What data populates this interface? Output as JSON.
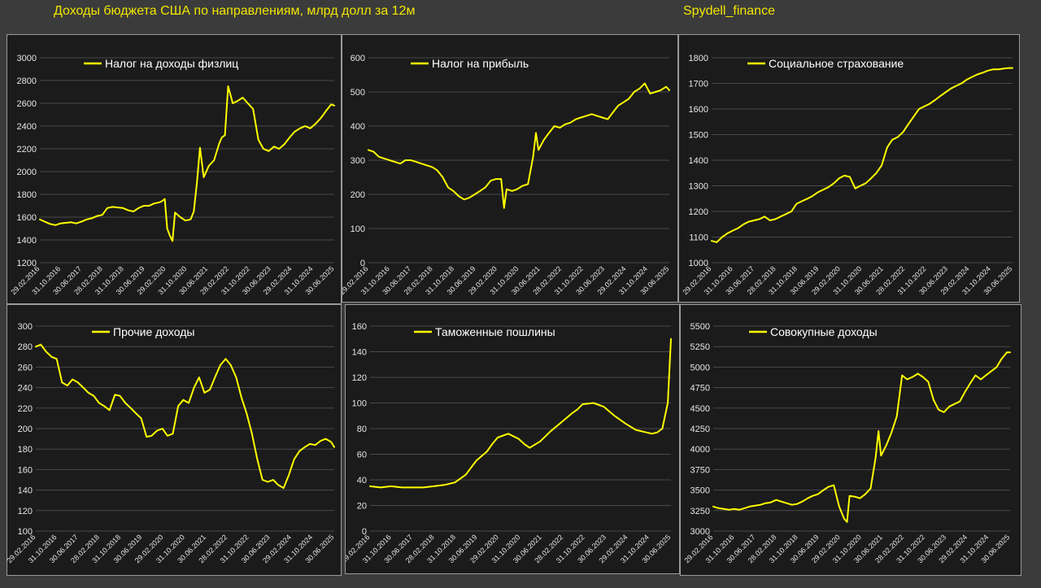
{
  "header": {
    "title": "Доходы бюджета США по направлениям, млрд долл за 12м",
    "brand": "Spydell_finance"
  },
  "colors": {
    "background": "#3b3b3b",
    "panel": "#1b1b1b",
    "line": "#ffff00",
    "title_text": "#f2e600"
  },
  "chart_data": [
    {
      "type": "line",
      "title": "",
      "legend": "Налог на доходы физлиц",
      "series": [
        {
          "name": "Налог на доходы физлиц",
          "x": [
            2016.17,
            2016.33,
            2016.5,
            2016.67,
            2016.83,
            2017.0,
            2017.17,
            2017.33,
            2017.5,
            2017.67,
            2017.83,
            2018.0,
            2018.17,
            2018.33,
            2018.5,
            2018.67,
            2018.83,
            2019.0,
            2019.17,
            2019.33,
            2019.5,
            2019.67,
            2019.83,
            2020.0,
            2020.08,
            2020.17,
            2020.25,
            2020.33,
            2020.42,
            2020.5,
            2020.67,
            2020.83,
            2021.0,
            2021.1,
            2021.2,
            2021.3,
            2021.42,
            2021.58,
            2021.75,
            2021.92,
            2022.0,
            2022.1,
            2022.2,
            2022.35,
            2022.5,
            2022.67,
            2022.83,
            2023.0,
            2023.17,
            2023.33,
            2023.5,
            2023.67,
            2023.83,
            2024.0,
            2024.17,
            2024.33,
            2024.5,
            2024.67,
            2024.83,
            2025.0,
            2025.17,
            2025.33,
            2025.5,
            2025.6
          ],
          "values": [
            1580,
            1560,
            1540,
            1530,
            1545,
            1550,
            1555,
            1545,
            1560,
            1580,
            1590,
            1610,
            1620,
            1680,
            1690,
            1685,
            1680,
            1660,
            1650,
            1680,
            1700,
            1700,
            1720,
            1730,
            1740,
            1760,
            1500,
            1440,
            1390,
            1640,
            1600,
            1570,
            1580,
            1650,
            1900,
            2210,
            1950,
            2050,
            2100,
            2250,
            2300,
            2320,
            2750,
            2600,
            2620,
            2650,
            2600,
            2550,
            2280,
            2200,
            2180,
            2220,
            2200,
            2240,
            2300,
            2350,
            2380,
            2400,
            2380,
            2420,
            2470,
            2530,
            2590,
            2580
          ]
        }
      ],
      "ylim": [
        1200,
        3000
      ],
      "yticks": [
        "3000",
        "2800",
        "2600",
        "2400",
        "2200",
        "2000",
        "1800",
        "1600",
        "1400",
        "1200"
      ],
      "xticks": [
        "29.02.2016",
        "31.10.2016",
        "30.06.2017",
        "28.02.2018",
        "31.10.2018",
        "30.06.2019",
        "29.02.2020",
        "31.10.2020",
        "30.06.2021",
        "28.02.2022",
        "31.10.2022",
        "30.06.2023",
        "29.02.2024",
        "31.10.2024",
        "30.06.2025"
      ]
    },
    {
      "type": "line",
      "title": "",
      "legend": "Налог на прибыль",
      "series": [
        {
          "name": "Налог на прибыль",
          "x": [
            2016.17,
            2016.33,
            2016.5,
            2016.67,
            2016.83,
            2017.0,
            2017.17,
            2017.33,
            2017.5,
            2017.67,
            2017.83,
            2018.0,
            2018.17,
            2018.33,
            2018.5,
            2018.67,
            2018.83,
            2019.0,
            2019.17,
            2019.33,
            2019.5,
            2019.67,
            2019.83,
            2020.0,
            2020.17,
            2020.33,
            2020.42,
            2020.5,
            2020.67,
            2020.83,
            2021.0,
            2021.17,
            2021.33,
            2021.42,
            2021.5,
            2021.67,
            2021.83,
            2022.0,
            2022.17,
            2022.33,
            2022.5,
            2022.67,
            2022.83,
            2023.0,
            2023.17,
            2023.33,
            2023.5,
            2023.67,
            2023.83,
            2024.0,
            2024.17,
            2024.33,
            2024.5,
            2024.67,
            2024.83,
            2025.0,
            2025.17,
            2025.33,
            2025.5,
            2025.6
          ],
          "values": [
            330,
            325,
            310,
            305,
            300,
            295,
            290,
            300,
            300,
            295,
            290,
            285,
            280,
            270,
            250,
            220,
            210,
            195,
            185,
            190,
            200,
            210,
            220,
            240,
            245,
            245,
            160,
            215,
            210,
            215,
            225,
            230,
            310,
            380,
            330,
            360,
            380,
            400,
            395,
            405,
            410,
            420,
            425,
            430,
            435,
            430,
            425,
            420,
            440,
            460,
            470,
            480,
            500,
            510,
            525,
            495,
            500,
            505,
            515,
            505
          ]
        }
      ],
      "ylim": [
        0,
        600
      ],
      "yticks": [
        "600",
        "500",
        "400",
        "300",
        "200",
        "100",
        "0"
      ],
      "xticks": [
        "29.02.2016",
        "31.10.2016",
        "30.06.2017",
        "28.02.2018",
        "31.10.2018",
        "30.06.2019",
        "29.02.2020",
        "31.10.2020",
        "30.06.2021",
        "28.02.2022",
        "31.10.2022",
        "30.06.2023",
        "29.02.2024",
        "31.10.2024",
        "30.06.2025"
      ]
    },
    {
      "type": "line",
      "title": "",
      "legend": "Социальное страхование",
      "series": [
        {
          "name": "Социальное страхование",
          "x": [
            2016.17,
            2016.33,
            2016.5,
            2016.67,
            2016.83,
            2017.0,
            2017.17,
            2017.33,
            2017.5,
            2017.67,
            2017.83,
            2018.0,
            2018.17,
            2018.33,
            2018.5,
            2018.67,
            2018.83,
            2019.0,
            2019.17,
            2019.33,
            2019.5,
            2019.67,
            2019.83,
            2020.0,
            2020.17,
            2020.33,
            2020.5,
            2020.67,
            2020.83,
            2021.0,
            2021.17,
            2021.33,
            2021.5,
            2021.67,
            2021.83,
            2022.0,
            2022.17,
            2022.33,
            2022.5,
            2022.67,
            2022.83,
            2023.0,
            2023.17,
            2023.33,
            2023.5,
            2023.67,
            2023.83,
            2024.0,
            2024.17,
            2024.33,
            2024.5,
            2024.67,
            2024.83,
            2025.0,
            2025.17,
            2025.33,
            2025.5,
            2025.6
          ],
          "values": [
            1085,
            1080,
            1100,
            1115,
            1125,
            1135,
            1150,
            1160,
            1165,
            1170,
            1180,
            1165,
            1170,
            1180,
            1190,
            1200,
            1230,
            1240,
            1250,
            1260,
            1275,
            1285,
            1295,
            1310,
            1330,
            1340,
            1335,
            1290,
            1300,
            1310,
            1330,
            1350,
            1380,
            1450,
            1480,
            1490,
            1510,
            1540,
            1570,
            1600,
            1610,
            1620,
            1635,
            1650,
            1665,
            1680,
            1690,
            1700,
            1715,
            1725,
            1735,
            1742,
            1750,
            1755,
            1755,
            1758,
            1760,
            1760
          ]
        }
      ],
      "ylim": [
        1000,
        1800
      ],
      "yticks": [
        "1800",
        "1700",
        "1600",
        "1500",
        "1400",
        "1300",
        "1200",
        "1100",
        "1000"
      ],
      "xticks": [
        "29.02.2016",
        "31.10.2016",
        "30.06.2017",
        "28.02.2018",
        "31.10.2018",
        "30.06.2019",
        "29.02.2020",
        "31.10.2020",
        "30.06.2021",
        "28.02.2022",
        "31.10.2022",
        "30.06.2023",
        "29.02.2024",
        "31.10.2024",
        "30.06.2025"
      ]
    },
    {
      "type": "line",
      "title": "",
      "legend": "Прочие доходы",
      "series": [
        {
          "name": "Прочие доходы",
          "x": [
            2016.17,
            2016.33,
            2016.5,
            2016.67,
            2016.83,
            2017.0,
            2017.17,
            2017.33,
            2017.5,
            2017.67,
            2017.83,
            2018.0,
            2018.17,
            2018.33,
            2018.5,
            2018.67,
            2018.83,
            2019.0,
            2019.17,
            2019.33,
            2019.5,
            2019.67,
            2019.83,
            2020.0,
            2020.17,
            2020.33,
            2020.5,
            2020.67,
            2020.83,
            2021.0,
            2021.17,
            2021.33,
            2021.5,
            2021.67,
            2021.83,
            2022.0,
            2022.17,
            2022.33,
            2022.5,
            2022.67,
            2022.83,
            2023.0,
            2023.17,
            2023.33,
            2023.5,
            2023.67,
            2023.83,
            2024.0,
            2024.17,
            2024.33,
            2024.5,
            2024.67,
            2024.83,
            2025.0,
            2025.17,
            2025.33,
            2025.5,
            2025.6
          ],
          "values": [
            280,
            282,
            275,
            270,
            268,
            245,
            242,
            248,
            245,
            240,
            235,
            232,
            225,
            222,
            218,
            233,
            232,
            225,
            220,
            215,
            210,
            192,
            193,
            198,
            200,
            193,
            195,
            222,
            228,
            225,
            240,
            250,
            235,
            238,
            250,
            262,
            268,
            262,
            250,
            230,
            215,
            195,
            170,
            150,
            148,
            150,
            145,
            142,
            155,
            170,
            178,
            182,
            185,
            184,
            188,
            190,
            187,
            182
          ]
        }
      ],
      "ylim": [
        100,
        300
      ],
      "yticks": [
        "300",
        "280",
        "260",
        "240",
        "220",
        "200",
        "180",
        "160",
        "140",
        "120",
        "100"
      ],
      "xticks": [
        "29.02.2016",
        "31.10.2016",
        "30.06.2017",
        "28.02.2018",
        "31.10.2018",
        "30.06.2019",
        "29.02.2020",
        "31.10.2020",
        "30.06.2021",
        "28.02.2022",
        "31.10.2022",
        "30.06.2023",
        "29.02.2024",
        "31.10.2024",
        "30.06.2025"
      ]
    },
    {
      "type": "line",
      "title": "",
      "legend": "Таможенные пошлины",
      "series": [
        {
          "name": "Таможенные пошлины",
          "x": [
            2016.17,
            2016.5,
            2016.83,
            2017.17,
            2017.5,
            2017.83,
            2018.17,
            2018.5,
            2018.83,
            2019.17,
            2019.5,
            2019.83,
            2020.0,
            2020.17,
            2020.5,
            2020.83,
            2021.0,
            2021.17,
            2021.5,
            2021.83,
            2022.17,
            2022.5,
            2022.67,
            2022.83,
            2023.17,
            2023.5,
            2023.83,
            2024.17,
            2024.5,
            2024.83,
            2025.0,
            2025.17,
            2025.33,
            2025.5,
            2025.6
          ],
          "values": [
            35,
            34,
            35,
            34,
            34,
            34,
            35,
            36,
            38,
            44,
            55,
            62,
            68,
            73,
            76,
            72,
            68,
            65,
            70,
            78,
            85,
            92,
            95,
            99,
            100,
            97,
            90,
            84,
            79,
            77,
            76,
            77,
            80,
            100,
            150
          ]
        }
      ],
      "ylim": [
        0,
        160
      ],
      "yticks": [
        "160",
        "140",
        "120",
        "100",
        "80",
        "60",
        "40",
        "20",
        "0"
      ],
      "xticks": [
        "29.02.2016",
        "31.10.2016",
        "30.06.2017",
        "28.02.2018",
        "31.10.2018",
        "30.06.2019",
        "29.02.2020",
        "31.10.2020",
        "30.06.2021",
        "28.02.2022",
        "31.10.2022",
        "30.06.2023",
        "29.02.2024",
        "31.10.2024",
        "30.06.2025"
      ]
    },
    {
      "type": "line",
      "title": "",
      "legend": "Совокупные доходы",
      "series": [
        {
          "name": "Совокупные доходы",
          "x": [
            2016.17,
            2016.33,
            2016.5,
            2016.67,
            2016.83,
            2017.0,
            2017.17,
            2017.33,
            2017.5,
            2017.67,
            2017.83,
            2018.0,
            2018.17,
            2018.33,
            2018.5,
            2018.67,
            2018.83,
            2019.0,
            2019.17,
            2019.33,
            2019.5,
            2019.67,
            2019.83,
            2020.0,
            2020.17,
            2020.33,
            2020.42,
            2020.5,
            2020.67,
            2020.83,
            2021.0,
            2021.17,
            2021.33,
            2021.42,
            2021.5,
            2021.67,
            2021.83,
            2022.0,
            2022.17,
            2022.33,
            2022.5,
            2022.67,
            2022.83,
            2023.0,
            2023.17,
            2023.33,
            2023.5,
            2023.67,
            2023.83,
            2024.0,
            2024.17,
            2024.33,
            2024.5,
            2024.67,
            2024.83,
            2025.0,
            2025.17,
            2025.33,
            2025.5,
            2025.6
          ],
          "values": [
            3300,
            3280,
            3270,
            3260,
            3270,
            3260,
            3280,
            3300,
            3310,
            3320,
            3340,
            3350,
            3380,
            3360,
            3340,
            3320,
            3330,
            3360,
            3400,
            3430,
            3450,
            3500,
            3540,
            3560,
            3300,
            3150,
            3110,
            3430,
            3420,
            3400,
            3450,
            3520,
            3900,
            4220,
            3920,
            4050,
            4200,
            4400,
            4900,
            4850,
            4880,
            4920,
            4880,
            4820,
            4600,
            4480,
            4450,
            4520,
            4550,
            4580,
            4700,
            4800,
            4900,
            4850,
            4900,
            4950,
            5000,
            5100,
            5180,
            5180
          ]
        }
      ],
      "ylim": [
        3000,
        5500
      ],
      "yticks": [
        "5500",
        "5250",
        "5000",
        "4750",
        "4500",
        "4250",
        "4000",
        "3750",
        "3500",
        "3250",
        "3000"
      ],
      "xticks": [
        "29.02.2016",
        "31.10.2016",
        "30.06.2017",
        "28.02.2018",
        "31.10.2018",
        "30.06.2019",
        "29.02.2020",
        "31.10.2020",
        "30.06.2021",
        "28.02.2022",
        "31.10.2022",
        "30.06.2023",
        "29.02.2024",
        "31.10.2024",
        "30.06.2025"
      ]
    }
  ]
}
